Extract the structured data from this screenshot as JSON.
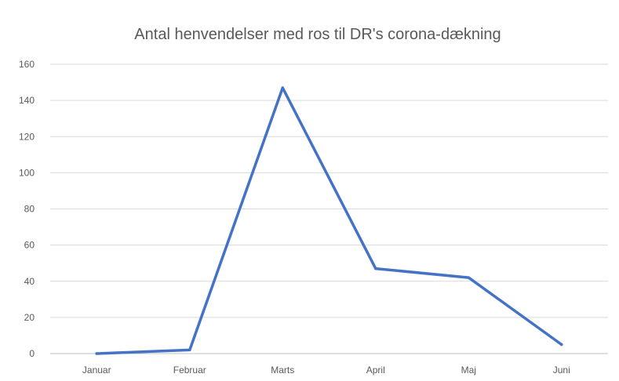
{
  "chart_data": {
    "type": "line",
    "title": "Antal henvendelser med ros til DR's corona-dækning",
    "xlabel": "",
    "ylabel": "",
    "categories": [
      "Januar",
      "Februar",
      "Marts",
      "April",
      "Maj",
      "Juni"
    ],
    "series": [
      {
        "values": [
          0,
          2,
          147,
          47,
          42,
          5
        ],
        "color": "#4472c4"
      }
    ],
    "ylim": [
      0,
      160
    ],
    "yticks": [
      0,
      20,
      40,
      60,
      80,
      100,
      120,
      140,
      160
    ],
    "grid": true,
    "legend": "none"
  }
}
